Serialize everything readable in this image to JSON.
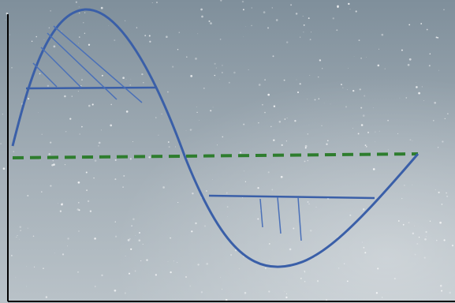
{
  "background": {
    "description_color_top": "#7f8f9b",
    "description_color_bottom": "#b7c0c6",
    "star_color": "#ffffff"
  },
  "axes": {
    "color": "#000000"
  },
  "curve": {
    "color": "#3a5fa8"
  },
  "hatching": {
    "color": "#4a70b8"
  },
  "baseline": {
    "color": "#2e7d2e",
    "style": "dashed"
  }
}
